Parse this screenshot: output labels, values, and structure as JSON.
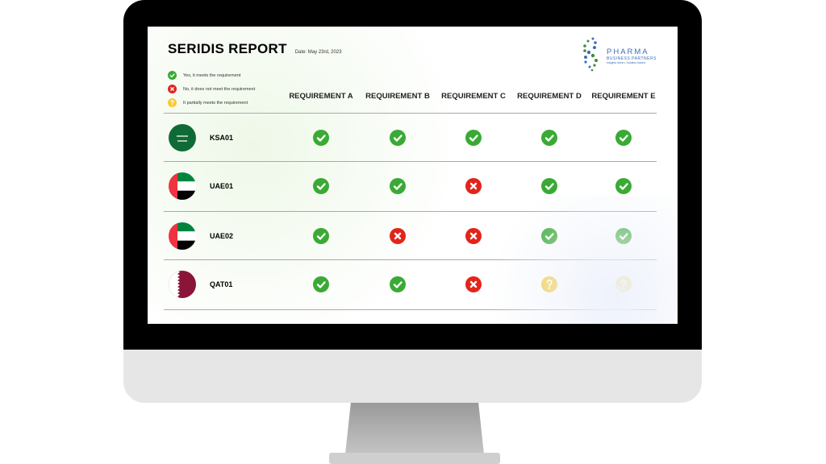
{
  "report": {
    "title": "SERIDIS REPORT",
    "date": "Date: May 23rd, 2023"
  },
  "legend": [
    {
      "status": "yes",
      "label": "Yes, it meets the requirement"
    },
    {
      "status": "no",
      "label": "No, it does not meet the requirement"
    },
    {
      "status": "partial",
      "label": "It partially meets the requirement"
    }
  ],
  "logo": {
    "name": "PHARMA",
    "sub": "BUSINESS PARTNERS",
    "tagline": "Insights driven. Solution based."
  },
  "columns": [
    "REQUIREMENT A",
    "REQUIREMENT B",
    "REQUIREMENT C",
    "REQUIREMENT D",
    "REQUIREMENT E"
  ],
  "rows": [
    {
      "code": "KSA01",
      "flag": "saudi-arabia",
      "values": [
        "yes",
        "yes",
        "yes",
        "yes",
        "yes"
      ]
    },
    {
      "code": "UAE01",
      "flag": "uae",
      "values": [
        "yes",
        "yes",
        "no",
        "yes",
        "yes"
      ]
    },
    {
      "code": "UAE02",
      "flag": "uae",
      "values": [
        "yes",
        "no",
        "no",
        "yes",
        "yes"
      ]
    },
    {
      "code": "QAT01",
      "flag": "qatar",
      "values": [
        "yes",
        "yes",
        "no",
        "partial",
        "partial"
      ]
    }
  ],
  "colors": {
    "yes": "#3aaa35",
    "no": "#e3241b",
    "partial": "#f7c934"
  }
}
